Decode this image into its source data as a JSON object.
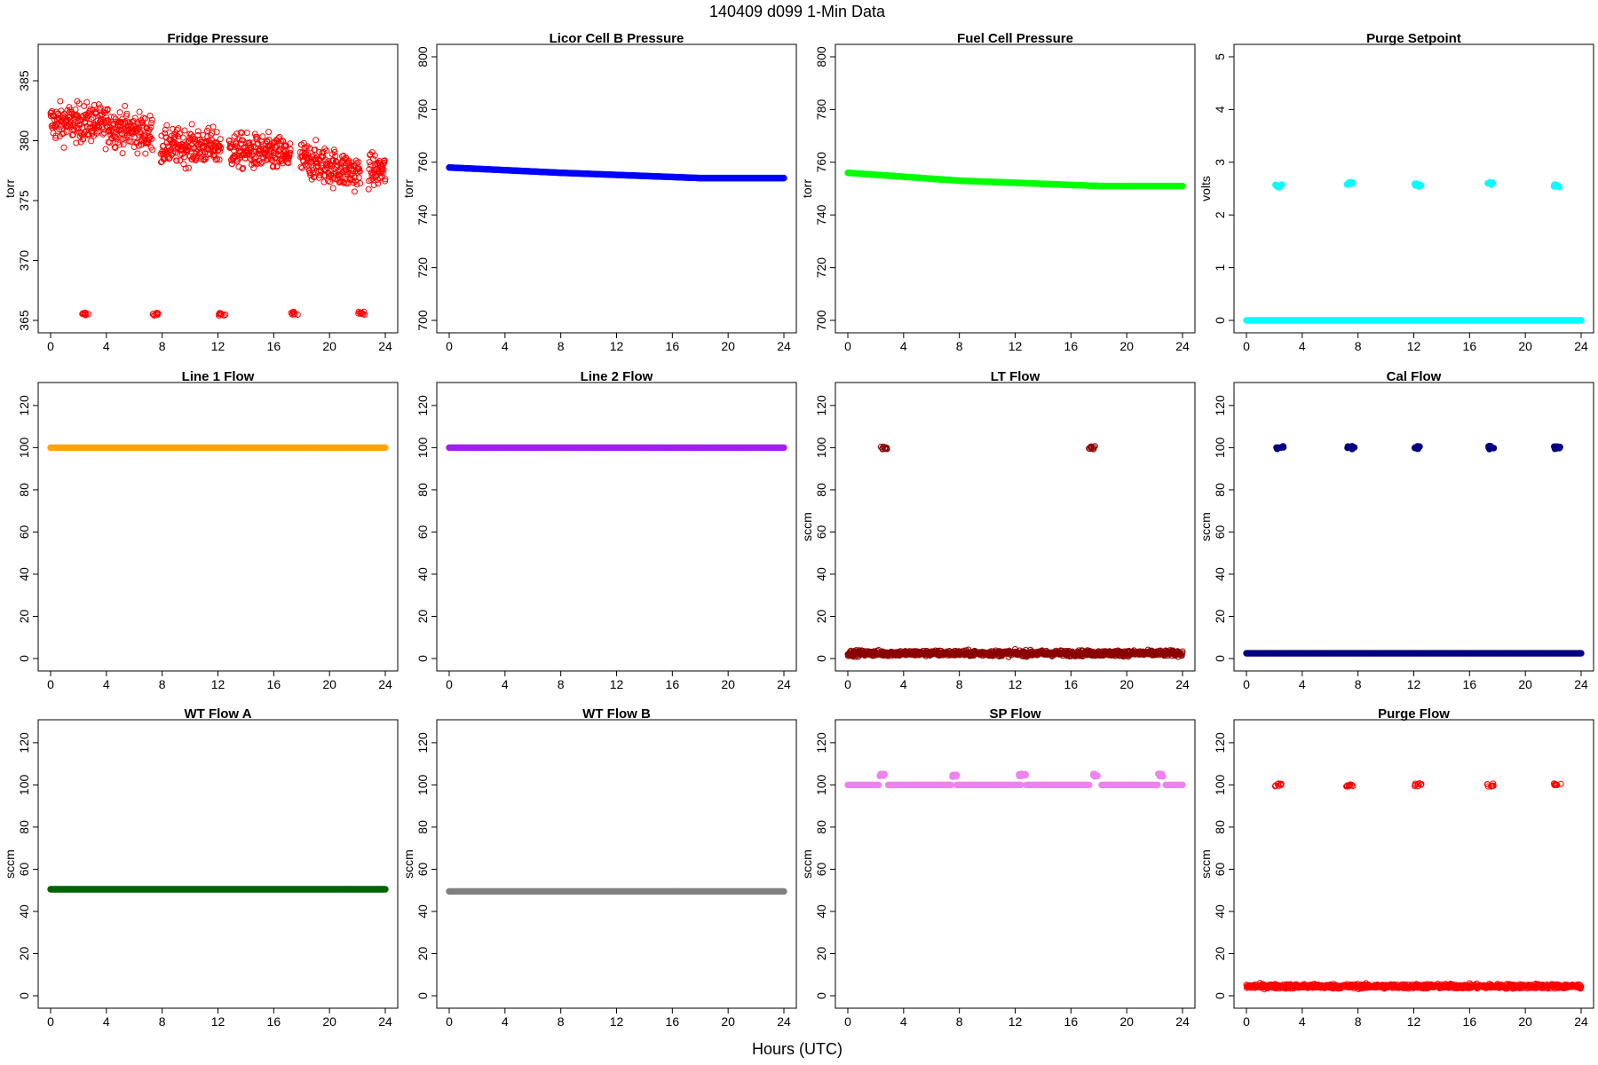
{
  "figure": {
    "title": "140409   d099   1-Min Data",
    "xlabel": "Hours (UTC)"
  },
  "chart_data": [
    {
      "type": "scatter",
      "title": "Fridge Pressure",
      "ylabel": "torr",
      "color": "#ff0000",
      "xlim": [
        0,
        24
      ],
      "ylim": [
        365,
        387
      ],
      "xticks": [
        0,
        4,
        8,
        12,
        16,
        20,
        24
      ],
      "yticks": [
        365,
        370,
        375,
        380,
        385
      ],
      "marker": "open-circle",
      "segments": [
        {
          "x": [
            0,
            3
          ],
          "y": [
            381.5,
            381.5
          ],
          "spread": 2.6
        },
        {
          "x": [
            3,
            7.3
          ],
          "y": [
            381.5,
            380.5
          ],
          "spread": 2.6
        },
        {
          "x": [
            7.9,
            12.2
          ],
          "y": [
            379.5,
            379.5
          ],
          "spread": 2.4
        },
        {
          "x": [
            12.8,
            17.2
          ],
          "y": [
            379.2,
            378.8
          ],
          "spread": 2.4
        },
        {
          "x": [
            17.9,
            22.2
          ],
          "y": [
            378.5,
            377.2
          ],
          "spread": 2.5
        },
        {
          "x": [
            22.8,
            24
          ],
          "y": [
            377.5,
            377.5
          ],
          "spread": 2.2
        }
      ],
      "clusters": [
        {
          "x": 2.5,
          "y": 365.5
        },
        {
          "x": 7.5,
          "y": 365.5
        },
        {
          "x": 12.3,
          "y": 365.5
        },
        {
          "x": 17.5,
          "y": 365.6
        },
        {
          "x": 22.3,
          "y": 365.6
        }
      ]
    },
    {
      "type": "line",
      "title": "Licor Cell B Pressure",
      "ylabel": "torr",
      "color": "#0000ff",
      "xlim": [
        0,
        24
      ],
      "ylim": [
        700,
        800
      ],
      "xticks": [
        0,
        4,
        8,
        12,
        16,
        20,
        24
      ],
      "yticks": [
        700,
        720,
        740,
        760,
        780,
        800
      ],
      "marker": "filled",
      "segments": [
        {
          "x": [
            0,
            8
          ],
          "y": [
            758,
            756
          ]
        },
        {
          "x": [
            8,
            18
          ],
          "y": [
            756,
            754
          ]
        },
        {
          "x": [
            18,
            24
          ],
          "y": [
            754,
            754
          ]
        }
      ],
      "clusters": []
    },
    {
      "type": "line",
      "title": "Fuel Cell Pressure",
      "ylabel": "torr",
      "color": "#00ff00",
      "xlim": [
        0,
        24
      ],
      "ylim": [
        700,
        800
      ],
      "xticks": [
        0,
        4,
        8,
        12,
        16,
        20,
        24
      ],
      "yticks": [
        700,
        720,
        740,
        760,
        780,
        800
      ],
      "marker": "filled",
      "segments": [
        {
          "x": [
            0,
            8
          ],
          "y": [
            756,
            753
          ]
        },
        {
          "x": [
            8,
            18
          ],
          "y": [
            753,
            751
          ]
        },
        {
          "x": [
            18,
            24
          ],
          "y": [
            751,
            751
          ]
        }
      ],
      "clusters": []
    },
    {
      "type": "scatter",
      "title": "Purge Setpoint",
      "ylabel": "volts",
      "color": "#00ffff",
      "xlim": [
        0,
        24
      ],
      "ylim": [
        0,
        5
      ],
      "xticks": [
        0,
        4,
        8,
        12,
        16,
        20,
        24
      ],
      "yticks": [
        0,
        1,
        2,
        3,
        4,
        5
      ],
      "marker": "filled",
      "segments": [
        {
          "x": [
            0,
            24
          ],
          "y": [
            0,
            0
          ]
        }
      ],
      "clusters": [
        {
          "x": 2.3,
          "y": 2.55
        },
        {
          "x": 7.4,
          "y": 2.6
        },
        {
          "x": 12.3,
          "y": 2.57
        },
        {
          "x": 17.5,
          "y": 2.6
        },
        {
          "x": 22.3,
          "y": 2.55
        }
      ]
    },
    {
      "type": "line",
      "title": "Line 1 Flow",
      "ylabel": "",
      "color": "#ffa500",
      "xlim": [
        0,
        24
      ],
      "ylim": [
        0,
        125
      ],
      "xticks": [
        0,
        4,
        8,
        12,
        16,
        20,
        24
      ],
      "yticks": [
        0,
        20,
        40,
        60,
        80,
        100,
        120
      ],
      "marker": "filled",
      "segments": [
        {
          "x": [
            0,
            24
          ],
          "y": [
            100,
            100
          ]
        }
      ],
      "clusters": []
    },
    {
      "type": "line",
      "title": "Line 2 Flow",
      "ylabel": "",
      "color": "#a020f0",
      "xlim": [
        0,
        24
      ],
      "ylim": [
        0,
        125
      ],
      "xticks": [
        0,
        4,
        8,
        12,
        16,
        20,
        24
      ],
      "yticks": [
        0,
        20,
        40,
        60,
        80,
        100,
        120
      ],
      "marker": "filled",
      "segments": [
        {
          "x": [
            0,
            24
          ],
          "y": [
            100,
            100
          ]
        }
      ],
      "clusters": []
    },
    {
      "type": "scatter",
      "title": "LT Flow",
      "ylabel": "sccm",
      "color": "#8b0000",
      "xlim": [
        0,
        24
      ],
      "ylim": [
        0,
        125
      ],
      "xticks": [
        0,
        4,
        8,
        12,
        16,
        20,
        24
      ],
      "yticks": [
        0,
        20,
        40,
        60,
        80,
        100,
        120
      ],
      "marker": "open-circle",
      "segments": [
        {
          "x": [
            0,
            24
          ],
          "y": [
            2.5,
            2.5
          ],
          "spread": 2.2
        }
      ],
      "clusters": [
        {
          "x": 2.6,
          "y": 100
        },
        {
          "x": 17.5,
          "y": 100
        }
      ]
    },
    {
      "type": "scatter",
      "title": "Cal Flow",
      "ylabel": "sccm",
      "color": "#000080",
      "xlim": [
        0,
        24
      ],
      "ylim": [
        0,
        125
      ],
      "xticks": [
        0,
        4,
        8,
        12,
        16,
        20,
        24
      ],
      "yticks": [
        0,
        20,
        40,
        60,
        80,
        100,
        120
      ],
      "marker": "filled",
      "segments": [
        {
          "x": [
            0,
            24
          ],
          "y": [
            2.5,
            2.5
          ]
        }
      ],
      "clusters": [
        {
          "x": 2.4,
          "y": 100
        },
        {
          "x": 7.5,
          "y": 100
        },
        {
          "x": 12.3,
          "y": 100
        },
        {
          "x": 17.6,
          "y": 100
        },
        {
          "x": 22.3,
          "y": 100
        }
      ]
    },
    {
      "type": "line",
      "title": "WT Flow A",
      "ylabel": "sccm",
      "color": "#006400",
      "xlim": [
        0,
        24
      ],
      "ylim": [
        0,
        125
      ],
      "xticks": [
        0,
        4,
        8,
        12,
        16,
        20,
        24
      ],
      "yticks": [
        0,
        20,
        40,
        60,
        80,
        100,
        120
      ],
      "marker": "filled",
      "segments": [
        {
          "x": [
            0,
            24
          ],
          "y": [
            50.5,
            50.5
          ]
        }
      ],
      "clusters": []
    },
    {
      "type": "line",
      "title": "WT Flow B",
      "ylabel": "sccm",
      "color": "#808080",
      "xlim": [
        0,
        24
      ],
      "ylim": [
        0,
        125
      ],
      "xticks": [
        0,
        4,
        8,
        12,
        16,
        20,
        24
      ],
      "yticks": [
        0,
        20,
        40,
        60,
        80,
        100,
        120
      ],
      "marker": "filled",
      "segments": [
        {
          "x": [
            0,
            24
          ],
          "y": [
            49.5,
            49.5
          ]
        }
      ],
      "clusters": []
    },
    {
      "type": "line",
      "title": "SP Flow",
      "ylabel": "sccm",
      "color": "#ee82ee",
      "xlim": [
        0,
        24
      ],
      "ylim": [
        0,
        125
      ],
      "xticks": [
        0,
        4,
        8,
        12,
        16,
        20,
        24
      ],
      "yticks": [
        0,
        20,
        40,
        60,
        80,
        100,
        120
      ],
      "marker": "filled",
      "segments": [
        {
          "x": [
            0,
            2.2
          ],
          "y": [
            100,
            100
          ]
        },
        {
          "x": [
            2.9,
            7.4
          ],
          "y": [
            100,
            100
          ]
        },
        {
          "x": [
            7.8,
            12.4
          ],
          "y": [
            100,
            100
          ]
        },
        {
          "x": [
            12.8,
            17.3
          ],
          "y": [
            100,
            100
          ]
        },
        {
          "x": [
            18.2,
            22.2
          ],
          "y": [
            100,
            100
          ]
        },
        {
          "x": [
            22.8,
            24
          ],
          "y": [
            100,
            100
          ]
        }
      ],
      "clusters": [
        {
          "x": 2.5,
          "y": 104.5
        },
        {
          "x": 7.6,
          "y": 104.5
        },
        {
          "x": 12.5,
          "y": 104.5
        },
        {
          "x": 17.7,
          "y": 104.5
        },
        {
          "x": 22.5,
          "y": 104.5
        }
      ]
    },
    {
      "type": "scatter",
      "title": "Purge Flow",
      "ylabel": "sccm",
      "color": "#ff0000",
      "xlim": [
        0,
        24
      ],
      "ylim": [
        0,
        125
      ],
      "xticks": [
        0,
        4,
        8,
        12,
        16,
        20,
        24
      ],
      "yticks": [
        0,
        20,
        40,
        60,
        80,
        100,
        120
      ],
      "marker": "open-circle",
      "segments": [
        {
          "x": [
            0,
            24
          ],
          "y": [
            4.5,
            4.5
          ],
          "spread": 1.8
        }
      ],
      "clusters": [
        {
          "x": 2.3,
          "y": 100
        },
        {
          "x": 7.4,
          "y": 100
        },
        {
          "x": 12.3,
          "y": 100
        },
        {
          "x": 17.5,
          "y": 100
        },
        {
          "x": 22.3,
          "y": 100
        }
      ]
    }
  ]
}
